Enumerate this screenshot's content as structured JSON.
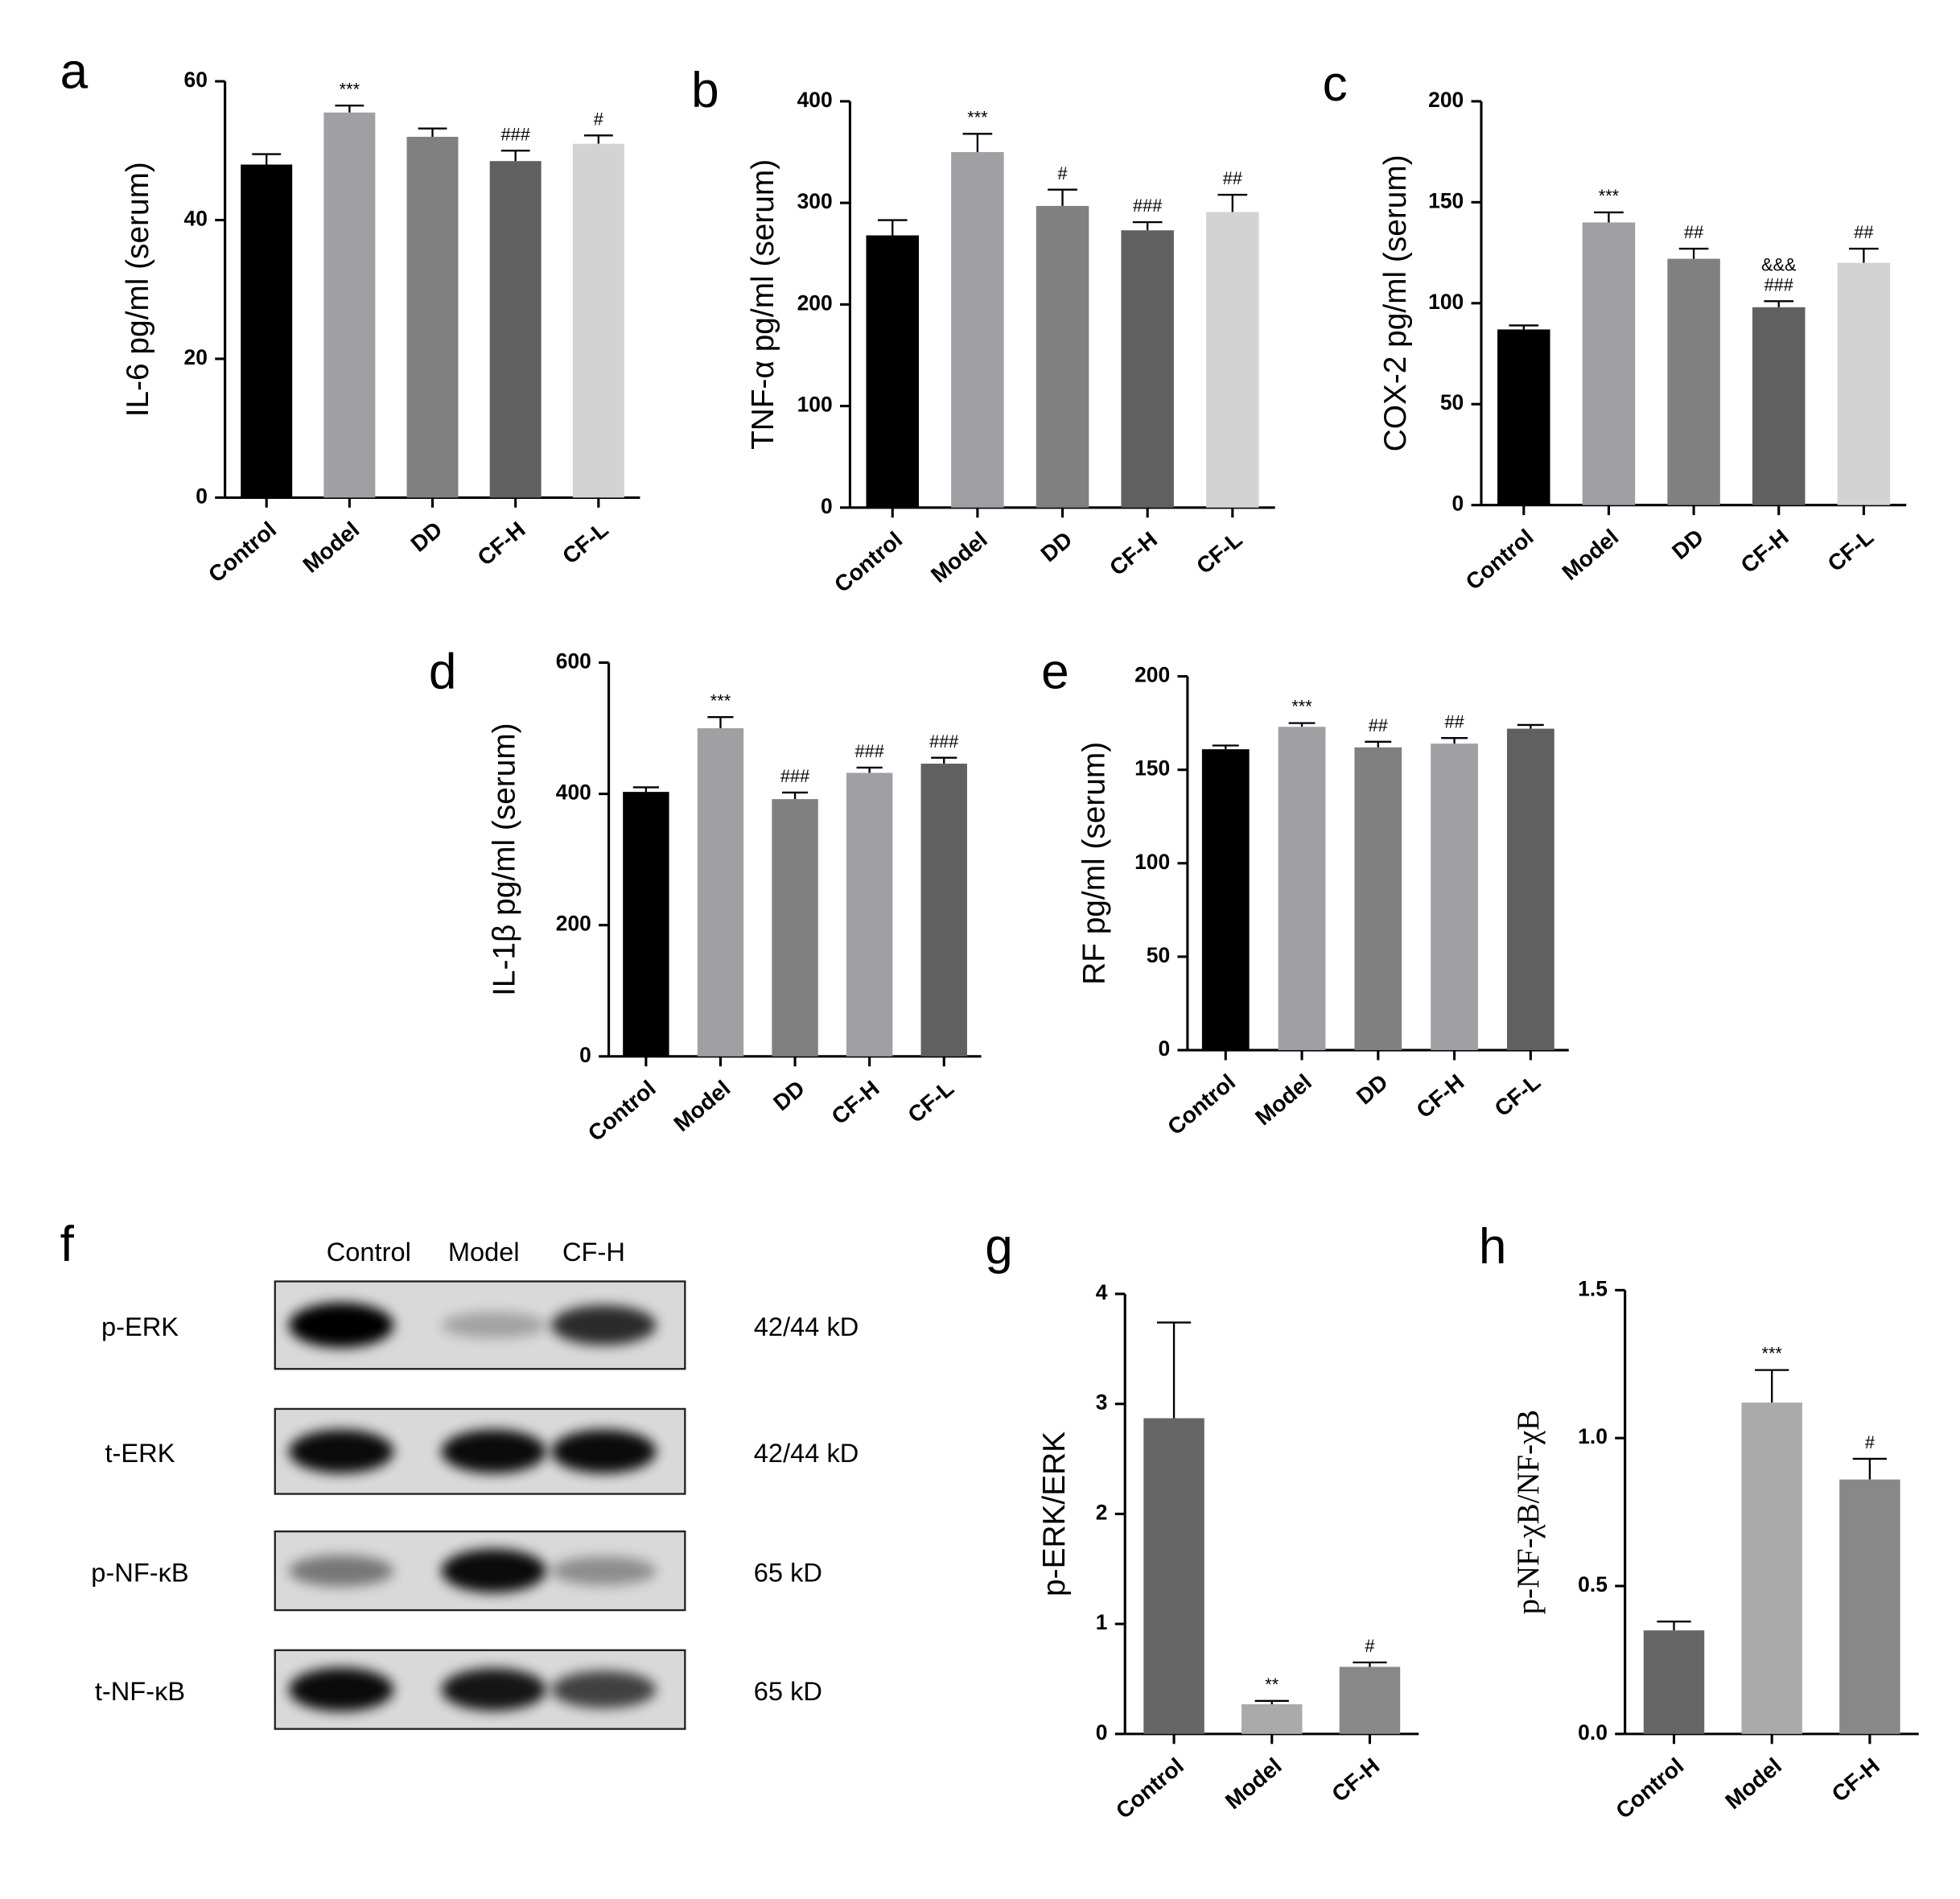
{
  "chart_data": [
    {
      "type": "bar",
      "panel": "a",
      "ylabel": "IL-6 pg/ml (serum)",
      "categories": [
        "Control",
        "Model",
        "DD",
        "CF-H",
        "CF-L"
      ],
      "values": [
        48,
        55.5,
        52,
        48.5,
        51
      ],
      "errors": [
        1.5,
        1,
        1.2,
        1.5,
        1.2
      ],
      "annotations": [
        null,
        [
          "***"
        ],
        null,
        [
          "###"
        ],
        [
          "#"
        ]
      ],
      "colors": [
        "#000000",
        "#a0a0a4",
        "#808080",
        "#606060",
        "#d3d3d3"
      ],
      "ylim": [
        0,
        60
      ],
      "yticks": [
        0,
        20,
        40,
        60
      ]
    },
    {
      "type": "bar",
      "panel": "b",
      "ylabel": "TNF-α pg/ml (serum)",
      "categories": [
        "Control",
        "Model",
        "DD",
        "CF-H",
        "CF-L"
      ],
      "values": [
        268,
        350,
        297,
        273,
        291
      ],
      "errors": [
        15,
        18,
        16,
        8,
        17
      ],
      "annotations": [
        null,
        [
          "***"
        ],
        [
          "#"
        ],
        [
          "###"
        ],
        [
          "##"
        ]
      ],
      "colors": [
        "#000000",
        "#a0a0a4",
        "#808080",
        "#606060",
        "#d3d3d3"
      ],
      "ylim": [
        0,
        400
      ],
      "yticks": [
        0,
        100,
        200,
        300,
        400
      ]
    },
    {
      "type": "bar",
      "panel": "c",
      "ylabel": "COX-2 pg/ml (serum)",
      "categories": [
        "Control",
        "Model",
        "DD",
        "CF-H",
        "CF-L"
      ],
      "values": [
        87,
        140,
        122,
        98,
        120
      ],
      "errors": [
        2,
        5,
        5,
        3,
        7
      ],
      "annotations": [
        null,
        [
          "***"
        ],
        [
          "##"
        ],
        [
          "&&&",
          "###"
        ],
        [
          "##"
        ]
      ],
      "colors": [
        "#000000",
        "#a0a0a4",
        "#808080",
        "#606060",
        "#d3d3d3"
      ],
      "ylim": [
        0,
        200
      ],
      "yticks": [
        0,
        50,
        100,
        150,
        200
      ]
    },
    {
      "type": "bar",
      "panel": "d",
      "ylabel": "IL-1β pg/ml (serum)",
      "categories": [
        "Control",
        "Model",
        "DD",
        "CF-H",
        "CF-L"
      ],
      "values": [
        403,
        500,
        392,
        432,
        446
      ],
      "errors": [
        7,
        17,
        10,
        8,
        9
      ],
      "annotations": [
        null,
        [
          "***"
        ],
        [
          "###"
        ],
        [
          "###"
        ],
        [
          "###"
        ]
      ],
      "colors": [
        "#000000",
        "#a0a0a4",
        "#808080",
        "#a0a0a4",
        "#606060"
      ],
      "ylim": [
        0,
        600
      ],
      "yticks": [
        0,
        200,
        400,
        600
      ]
    },
    {
      "type": "bar",
      "panel": "e",
      "ylabel": "RF pg/ml (serum)",
      "categories": [
        "Control",
        "Model",
        "DD",
        "CF-H",
        "CF-L"
      ],
      "values": [
        161,
        173,
        162,
        164,
        172
      ],
      "errors": [
        2,
        2,
        3,
        3,
        2
      ],
      "annotations": [
        null,
        [
          "***"
        ],
        [
          "##"
        ],
        [
          "##"
        ],
        null
      ],
      "colors": [
        "#000000",
        "#a0a0a4",
        "#808080",
        "#a0a0a4",
        "#606060"
      ],
      "ylim": [
        0,
        200
      ],
      "yticks": [
        0,
        50,
        100,
        150,
        200
      ]
    },
    {
      "type": "bar",
      "panel": "g",
      "ylabel": "p-ERK/ERK",
      "categories": [
        "Control",
        "Model",
        "CF-H"
      ],
      "values": [
        2.87,
        0.27,
        0.61
      ],
      "errors": [
        0.87,
        0.03,
        0.04
      ],
      "annotations": [
        null,
        [
          "**"
        ],
        [
          "#"
        ]
      ],
      "colors": [
        "#666666",
        "#aaaaaa",
        "#888888"
      ],
      "ylim": [
        0,
        4
      ],
      "yticks": [
        0,
        1,
        2,
        3,
        4
      ]
    },
    {
      "type": "bar",
      "panel": "h",
      "ylabel": "p-NF-χB/NF-χB",
      "categories": [
        "Control",
        "Model",
        "CF-H"
      ],
      "values": [
        0.35,
        1.12,
        0.86
      ],
      "errors": [
        0.03,
        0.11,
        0.07
      ],
      "annotations": [
        null,
        [
          "***"
        ],
        [
          "#"
        ]
      ],
      "colors": [
        "#666666",
        "#aaaaaa",
        "#888888"
      ],
      "ylim": [
        0,
        1.5
      ],
      "yticks": [
        {
          "value": 0,
          "label": "0.0"
        },
        0.5,
        {
          "value": 1,
          "label": "1.0"
        },
        1.5
      ]
    }
  ],
  "blot": {
    "panel": "f",
    "lanes": [
      "Control",
      "Model",
      "CF-H"
    ],
    "rows": [
      {
        "label": "p-ERK",
        "size": "42/44 kD"
      },
      {
        "label": "t-ERK",
        "size": "42/44 kD"
      },
      {
        "label": "p-NF-κB",
        "size": "65 kD"
      },
      {
        "label": "t-NF-κB",
        "size": "65 kD"
      }
    ]
  }
}
